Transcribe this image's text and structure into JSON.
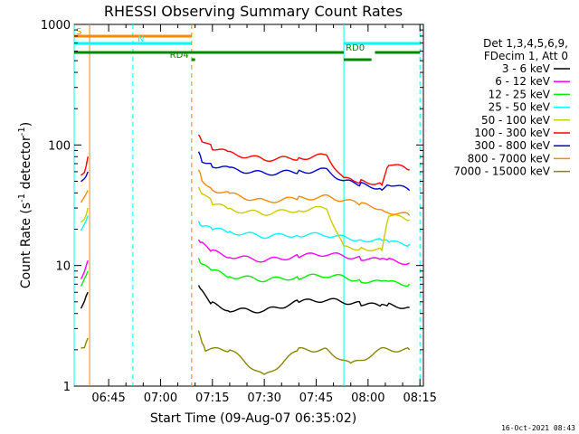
{
  "chart_data": {
    "type": "line",
    "title": "RHESSI Observing Summary Count Rates",
    "ylabel_main": "Count Rate (s",
    "ylabel_exp1": "-1",
    "ylabel_mid": " detector",
    "ylabel_exp2": "-1",
    "ylabel_end": ")",
    "xlabel": "Start Time (09-Aug-07 06:35:02)",
    "footer": "16-Oct-2021 08:43",
    "y_scale": "log",
    "ylim": [
      1,
      1000
    ],
    "xlim": [
      "06:35:02",
      "08:16:00"
    ],
    "y_ticks": [
      "1",
      "10",
      "100",
      "1000"
    ],
    "x_ticks": [
      "06:45",
      "07:00",
      "07:15",
      "07:30",
      "07:45",
      "08:00",
      "08:15"
    ],
    "legend_header": [
      "Det 1,3,4,5,6,9,",
      "FDecim 1, Att 0"
    ],
    "series": [
      {
        "name": "3 - 6 keV",
        "color": "#000000",
        "segments": [
          [
            [
              "06:37",
              4.5
            ],
            [
              "06:38",
              5
            ],
            [
              "06:39",
              6
            ]
          ],
          [
            [
              "07:11",
              7
            ],
            [
              "07:12",
              6
            ],
            [
              "07:15",
              4.8
            ],
            [
              "07:20",
              4.3
            ],
            [
              "07:30",
              4.2
            ],
            [
              "07:40",
              5
            ],
            [
              "07:48",
              5.2
            ],
            [
              "07:53",
              5.0
            ],
            [
              "07:58",
              4.8
            ],
            [
              "08:04",
              4.6
            ],
            [
              "08:06",
              4.7
            ],
            [
              "08:12",
              4.5
            ]
          ]
        ]
      },
      {
        "name": "6 - 12 keV",
        "color": "#ff00ff",
        "segments": [
          [
            [
              "06:37",
              8
            ],
            [
              "06:38",
              9
            ],
            [
              "06:39",
              11
            ]
          ],
          [
            [
              "07:11",
              17
            ],
            [
              "07:12",
              15
            ],
            [
              "07:15",
              13
            ],
            [
              "07:20",
              12
            ],
            [
              "07:30",
              11
            ],
            [
              "07:40",
              12
            ],
            [
              "07:48",
              12.5
            ],
            [
              "07:53",
              12
            ],
            [
              "07:58",
              11.5
            ],
            [
              "08:04",
              11
            ],
            [
              "08:06",
              11
            ],
            [
              "08:12",
              10.5
            ]
          ]
        ]
      },
      {
        "name": "12 - 25 keV",
        "color": "#00ee00",
        "segments": [
          [
            [
              "06:37",
              7
            ],
            [
              "06:38",
              8
            ],
            [
              "06:39",
              9
            ]
          ],
          [
            [
              "07:11",
              12
            ],
            [
              "07:12",
              10
            ],
            [
              "07:15",
              9
            ],
            [
              "07:20",
              8.2
            ],
            [
              "07:30",
              7.6
            ],
            [
              "07:40",
              8
            ],
            [
              "07:48",
              8.3
            ],
            [
              "07:53",
              8
            ],
            [
              "07:58",
              7.5
            ],
            [
              "08:04",
              7.2
            ],
            [
              "08:06",
              7.2
            ],
            [
              "08:12",
              7
            ]
          ]
        ]
      },
      {
        "name": "25 - 50 keV",
        "color": "#00ffff",
        "segments": [
          [
            [
              "06:37",
              20
            ],
            [
              "06:38",
              23
            ],
            [
              "06:39",
              26
            ]
          ],
          [
            [
              "07:11",
              24
            ],
            [
              "07:12",
              21
            ],
            [
              "07:15",
              20
            ],
            [
              "07:20",
              19
            ],
            [
              "07:30",
              17.5
            ],
            [
              "07:40",
              18
            ],
            [
              "07:48",
              18
            ],
            [
              "07:53",
              17
            ],
            [
              "07:58",
              16.5
            ],
            [
              "08:04",
              16
            ],
            [
              "08:06",
              15.5
            ],
            [
              "08:12",
              15
            ]
          ]
        ]
      },
      {
        "name": "50 - 100 keV",
        "color": "#cccc00",
        "segments": [
          [
            [
              "06:37",
              23
            ],
            [
              "06:38",
              25
            ],
            [
              "06:39",
              30
            ]
          ],
          [
            [
              "07:11",
              45
            ],
            [
              "07:12",
              40
            ],
            [
              "07:15",
              33
            ],
            [
              "07:20",
              29
            ],
            [
              "07:30",
              27
            ],
            [
              "07:40",
              29
            ],
            [
              "07:48",
              30
            ],
            [
              "07:53",
              14
            ],
            [
              "07:58",
              14
            ],
            [
              "08:04",
              13.5
            ],
            [
              "08:06",
              26
            ],
            [
              "08:12",
              24
            ]
          ]
        ]
      },
      {
        "name": "100 - 300 keV",
        "color": "#ff0000",
        "segments": [
          [
            [
              "06:37",
              55
            ],
            [
              "06:38",
              60
            ],
            [
              "06:39",
              80
            ]
          ],
          [
            [
              "07:11",
              120
            ],
            [
              "07:12",
              110
            ],
            [
              "07:15",
              95
            ],
            [
              "07:20",
              85
            ],
            [
              "07:30",
              76
            ],
            [
              "07:40",
              78
            ],
            [
              "07:48",
              82
            ],
            [
              "07:53",
              52
            ],
            [
              "07:58",
              50
            ],
            [
              "08:04",
              48
            ],
            [
              "08:06",
              70
            ],
            [
              "08:12",
              62
            ]
          ]
        ]
      },
      {
        "name": "300 - 800 keV",
        "color": "#0000cc",
        "segments": [
          [
            [
              "06:37",
              48
            ],
            [
              "06:38",
              52
            ],
            [
              "06:39",
              60
            ]
          ],
          [
            [
              "07:11",
              85
            ],
            [
              "07:12",
              75
            ],
            [
              "07:15",
              68
            ],
            [
              "07:20",
              63
            ],
            [
              "07:30",
              58
            ],
            [
              "07:40",
              60
            ],
            [
              "07:48",
              62
            ],
            [
              "07:53",
              50
            ],
            [
              "07:58",
              47
            ],
            [
              "08:04",
              44
            ],
            [
              "08:06",
              48
            ],
            [
              "08:12",
              42
            ]
          ]
        ]
      },
      {
        "name": "800 - 7000 keV",
        "color": "#ff8800",
        "segments": [
          [
            [
              "06:37",
              32
            ],
            [
              "06:38",
              36
            ],
            [
              "06:39",
              42
            ]
          ],
          [
            [
              "07:11",
              60
            ],
            [
              "07:12",
              52
            ],
            [
              "07:15",
              43
            ],
            [
              "07:20",
              39
            ],
            [
              "07:30",
              34
            ],
            [
              "07:40",
              36
            ],
            [
              "07:48",
              37
            ],
            [
              "07:53",
              35
            ],
            [
              "07:58",
              32
            ],
            [
              "08:04",
              30
            ],
            [
              "08:06",
              28
            ],
            [
              "08:12",
              26
            ]
          ]
        ]
      },
      {
        "name": "7000 - 15000 keV",
        "color": "#888800",
        "segments": [
          [
            [
              "06:37",
              2
            ],
            [
              "06:38",
              2
            ],
            [
              "06:39",
              2.5
            ]
          ],
          [
            [
              "07:11",
              2.8
            ],
            [
              "07:12",
              2.2
            ],
            [
              "07:13",
              2
            ],
            [
              "07:20",
              2
            ],
            [
              "07:30",
              1.2
            ],
            [
              "07:40",
              2
            ],
            [
              "07:48",
              2
            ],
            [
              "07:55",
              1.5
            ],
            [
              "08:04",
              2
            ],
            [
              "08:12",
              2
            ]
          ]
        ]
      }
    ],
    "status_bars": [
      {
        "label": "S",
        "color": "#ff8800",
        "level": 1,
        "start": "06:35:02",
        "end": "07:09"
      },
      {
        "label": "N",
        "color": "#00ffff",
        "level": 2,
        "start": "06:35:02",
        "end": "07:09"
      },
      {
        "label": "",
        "color": "#00ffff",
        "level": 2,
        "start": "07:53",
        "end": "08:15"
      },
      {
        "label": "RD0",
        "color": "#008800",
        "level": 3,
        "start": "06:35:02",
        "end": "07:53"
      },
      {
        "label": "",
        "color": "#008800",
        "level": 3,
        "start": "08:02",
        "end": "08:15"
      },
      {
        "label": "",
        "color": "#008800",
        "level": 4,
        "start": "07:53",
        "end": "08:01"
      },
      {
        "label": "RD4",
        "color": "#008800",
        "level": 4,
        "start": "07:09",
        "end": "07:10"
      }
    ],
    "vlines": [
      {
        "time": "06:35:02",
        "color": "#00ffff",
        "style": "solid"
      },
      {
        "time": "06:39:30",
        "color": "#ff8800",
        "style": "solid"
      },
      {
        "time": "06:52",
        "color": "#00ffff",
        "style": "dashed"
      },
      {
        "time": "07:09",
        "color": "#ff8800",
        "style": "dashed"
      },
      {
        "time": "07:53",
        "color": "#00ffff",
        "style": "solid"
      },
      {
        "time": "08:15",
        "color": "#00ffff",
        "style": "dashed"
      }
    ]
  }
}
